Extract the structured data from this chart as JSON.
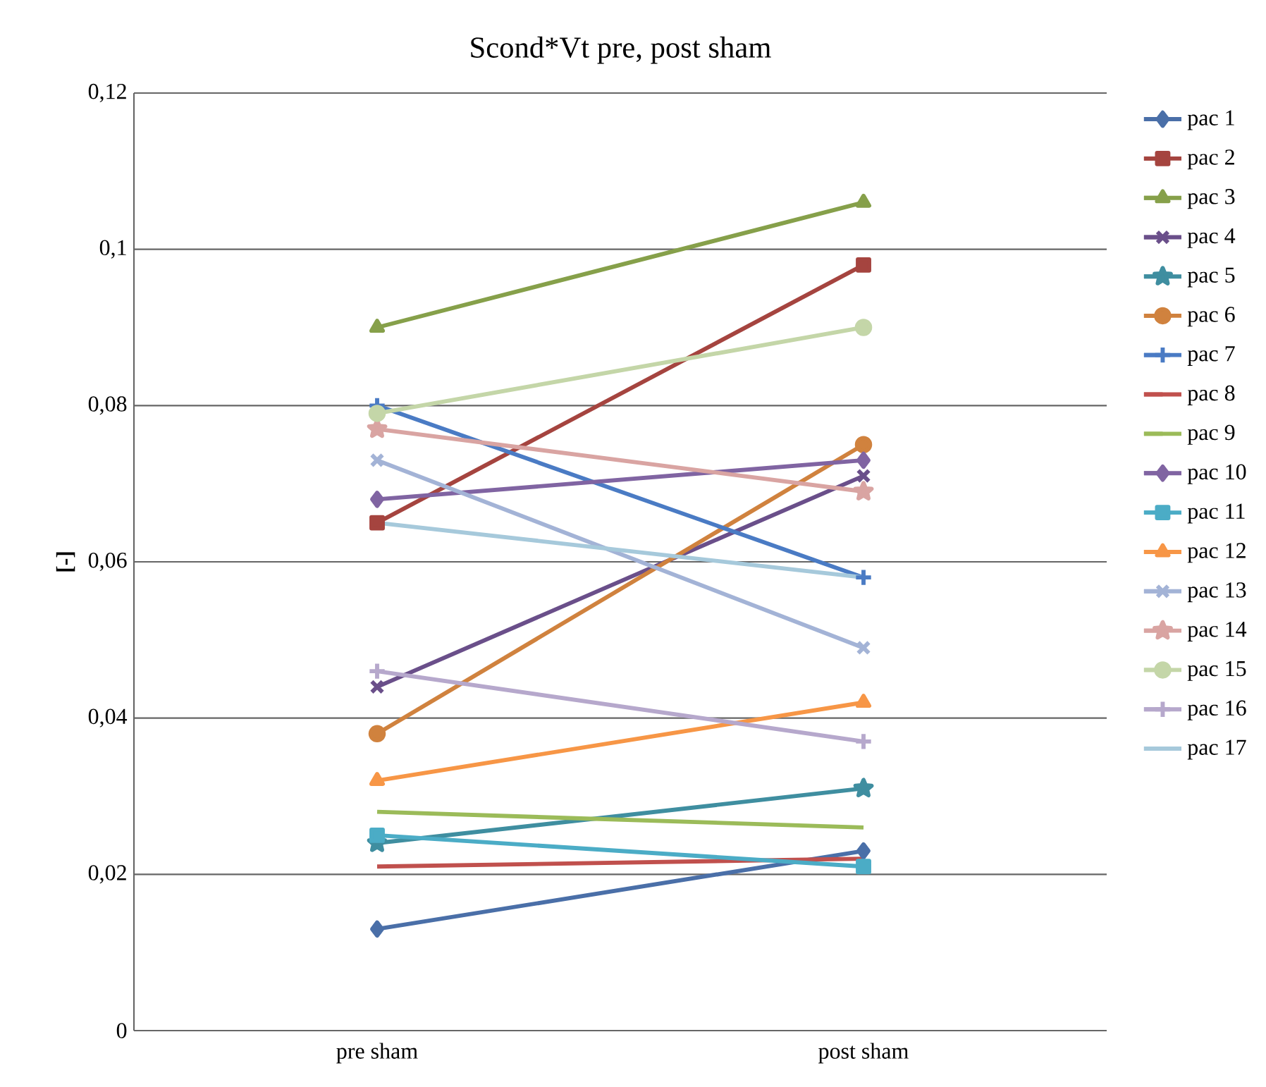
{
  "chart_data": {
    "type": "line",
    "title": "Scond*Vt  pre, post sham",
    "ylabel": "[-]",
    "categories": [
      "pre sham",
      "post sham"
    ],
    "ylim": [
      0,
      0.12
    ],
    "yticks": [
      0,
      {
        "value": 0.02,
        "label": "0,02"
      },
      {
        "value": 0.04,
        "label": "0,04"
      },
      {
        "value": 0.06,
        "label": "0,06"
      },
      {
        "value": 0.08,
        "label": "0,08"
      },
      {
        "value": 0.1,
        "label": "0,1"
      },
      {
        "value": 0.12,
        "label": "0,12"
      }
    ],
    "grid": "y",
    "legend": "right",
    "line_style": "solid",
    "series": [
      {
        "name": "pac 1",
        "color": "#4a6fa8",
        "marker": "diamond",
        "values": [
          0.013,
          0.023
        ]
      },
      {
        "name": "pac 2",
        "color": "#a5443f",
        "marker": "square",
        "values": [
          0.065,
          0.098
        ]
      },
      {
        "name": "pac 3",
        "color": "#86a04a",
        "marker": "triangle",
        "values": [
          0.09,
          0.106
        ]
      },
      {
        "name": "pac 4",
        "color": "#6a4f8a",
        "marker": "cross",
        "values": [
          0.044,
          0.071
        ]
      },
      {
        "name": "pac 5",
        "color": "#3f8ea0",
        "marker": "star",
        "values": [
          0.024,
          0.031
        ]
      },
      {
        "name": "pac 6",
        "color": "#d0823e",
        "marker": "circle",
        "values": [
          0.038,
          0.075
        ]
      },
      {
        "name": "pac 7",
        "color": "#4a7bc4",
        "marker": "plus",
        "values": [
          0.08,
          0.058
        ]
      },
      {
        "name": "pac 8",
        "color": "#c0504d",
        "marker": "none",
        "values": [
          0.021,
          0.022
        ]
      },
      {
        "name": "pac 9",
        "color": "#9bbb59",
        "marker": "none",
        "values": [
          0.028,
          0.026
        ]
      },
      {
        "name": "pac 10",
        "color": "#8064a2",
        "marker": "diamond",
        "values": [
          0.068,
          0.073
        ]
      },
      {
        "name": "pac 11",
        "color": "#4bacc6",
        "marker": "square",
        "values": [
          0.025,
          0.021
        ]
      },
      {
        "name": "pac 12",
        "color": "#f79646",
        "marker": "triangle",
        "values": [
          0.032,
          0.042
        ]
      },
      {
        "name": "pac 13",
        "color": "#a3b3d6",
        "marker": "cross",
        "values": [
          0.073,
          0.049
        ]
      },
      {
        "name": "pac 14",
        "color": "#d9a4a2",
        "marker": "star",
        "values": [
          0.077,
          0.069
        ]
      },
      {
        "name": "pac 15",
        "color": "#c4d6a8",
        "marker": "circle",
        "values": [
          0.079,
          0.09
        ]
      },
      {
        "name": "pac 16",
        "color": "#b6a8cc",
        "marker": "plus",
        "values": [
          0.046,
          0.037
        ]
      },
      {
        "name": "pac 17",
        "color": "#a6c9db",
        "marker": "none",
        "values": [
          0.065,
          0.058
        ]
      }
    ]
  }
}
